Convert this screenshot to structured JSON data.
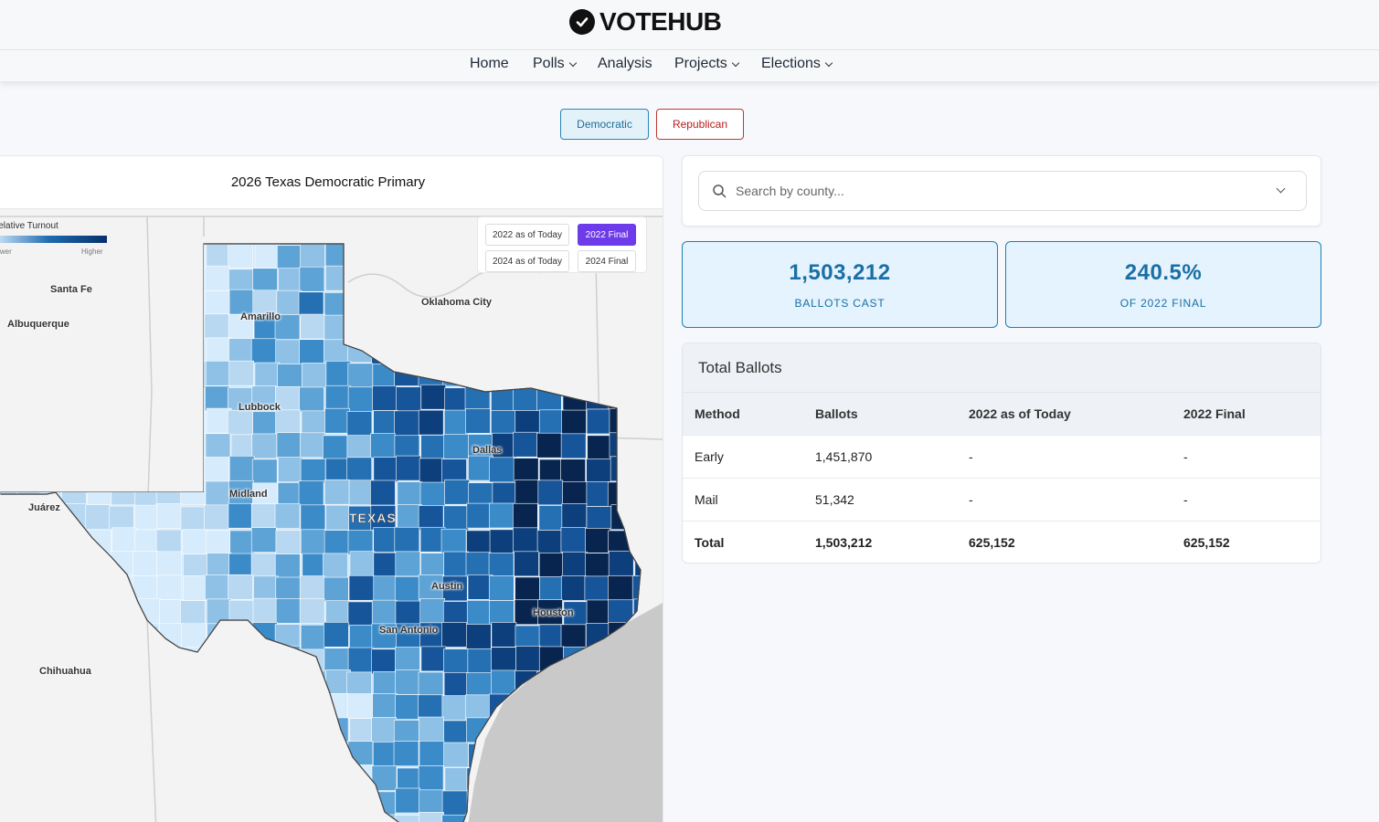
{
  "brand": {
    "name": "VOTEHUB",
    "logo_icon": "check-circle-icon"
  },
  "nav": {
    "home": "Home",
    "polls": "Polls",
    "analysis": "Analysis",
    "projects": "Projects",
    "elections": "Elections"
  },
  "party": {
    "democratic": "Democratic",
    "republican": "Republican",
    "selected": "Democratic"
  },
  "map": {
    "title": "2026 Texas Democratic Primary",
    "legend": {
      "title": "Relative Turnout",
      "low": "Lower",
      "high": "Higher"
    },
    "toggles": [
      {
        "label": "2022 as of Today",
        "active": false
      },
      {
        "label": "2022 Final",
        "active": true
      },
      {
        "label": "2024 as of Today",
        "active": false
      },
      {
        "label": "2024 Final",
        "active": false
      }
    ],
    "places": {
      "santa_fe": "Santa Fe",
      "albuquerque": "Albuquerque",
      "oklahoma_city": "Oklahoma City",
      "amarillo": "Amarillo",
      "lubbock": "Lubbock",
      "dallas": "Dallas",
      "juarez": "Juárez",
      "midland": "Midland",
      "texas": "TEXAS",
      "austin": "Austin",
      "houston": "Houston",
      "san_antonio": "San Antonio",
      "chihuahua": "Chihuahua"
    },
    "colors": {
      "lightest": "#d6ebfb",
      "mid": "#3b8bc9",
      "darkest": "#08254f"
    }
  },
  "search": {
    "placeholder": "Search by county..."
  },
  "stats": {
    "ballots": {
      "value": "1,503,212",
      "label": "BALLOTS CAST"
    },
    "percent": {
      "value": "240.5%",
      "label": "OF 2022 FINAL"
    }
  },
  "table": {
    "title": "Total Ballots",
    "columns": [
      "Method",
      "Ballots",
      "2022 as of Today",
      "2022 Final"
    ],
    "rows": [
      [
        "Early",
        "1,451,870",
        "-",
        "-"
      ],
      [
        "Mail",
        "51,342",
        "-",
        "-"
      ],
      [
        "Total",
        "1,503,212",
        "625,152",
        "625,152"
      ]
    ]
  }
}
